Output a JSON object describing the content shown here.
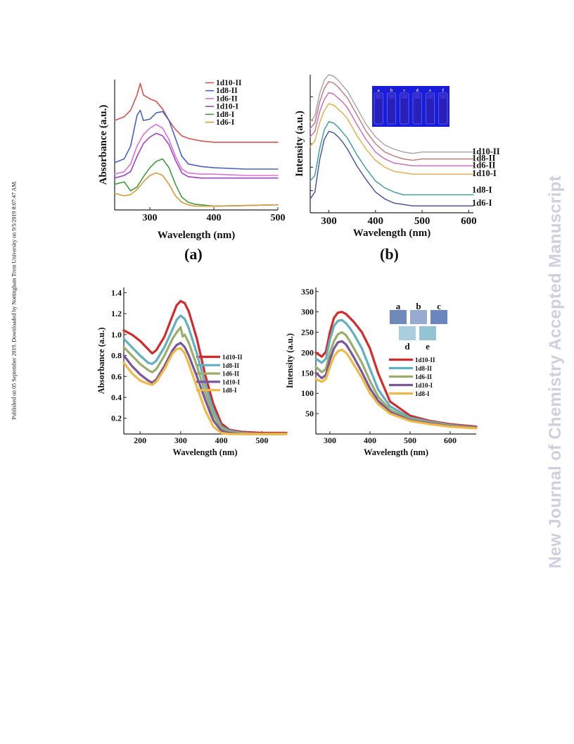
{
  "margin_note": "Published on 05 September 2019. Downloaded by Nottingham Trent University on 9/5/2019 8:07:47 AM.",
  "watermark": "New Journal of Chemistry Accepted Manuscript",
  "panel_labels": {
    "a": "(a)",
    "b": "(b)"
  },
  "inset_b_letters": [
    "a",
    "b",
    "c",
    "d",
    "e",
    "f"
  ],
  "inset_d_letters": [
    "a",
    "b",
    "c",
    "d",
    "e"
  ],
  "chart_data": [
    {
      "id": "a",
      "type": "line",
      "xlabel": "Wavelength (nm)",
      "ylabel": "Absorbance (a.u.)",
      "xlim": [
        245,
        500
      ],
      "x_ticks": [
        300,
        400,
        500
      ],
      "y_ticks_shown": false,
      "legend_position": "top-right",
      "series": [
        {
          "name": "1d10-II",
          "color": "#d9534f",
          "x": [
            245,
            260,
            270,
            280,
            285,
            290,
            300,
            310,
            320,
            330,
            340,
            350,
            360,
            380,
            400,
            450,
            500
          ],
          "y": [
            0.7,
            0.73,
            0.78,
            0.9,
            0.99,
            0.9,
            0.87,
            0.85,
            0.79,
            0.7,
            0.63,
            0.58,
            0.56,
            0.54,
            0.53,
            0.53,
            0.53
          ]
        },
        {
          "name": "1d8-II",
          "color": "#4a62c4",
          "x": [
            245,
            260,
            270,
            280,
            285,
            290,
            300,
            310,
            320,
            330,
            340,
            350,
            360,
            380,
            400,
            450,
            500
          ],
          "y": [
            0.37,
            0.4,
            0.5,
            0.74,
            0.78,
            0.7,
            0.71,
            0.76,
            0.77,
            0.7,
            0.56,
            0.42,
            0.36,
            0.34,
            0.33,
            0.32,
            0.32
          ]
        },
        {
          "name": "1d6-II",
          "color": "#e36fdc",
          "x": [
            245,
            260,
            270,
            280,
            290,
            300,
            310,
            320,
            330,
            340,
            350,
            360,
            380,
            400,
            450,
            500
          ],
          "y": [
            0.28,
            0.3,
            0.36,
            0.5,
            0.59,
            0.64,
            0.67,
            0.64,
            0.55,
            0.42,
            0.32,
            0.29,
            0.28,
            0.28,
            0.27,
            0.27
          ]
        },
        {
          "name": "1d10-I",
          "color": "#9d44c0",
          "x": [
            245,
            260,
            270,
            280,
            290,
            300,
            310,
            320,
            330,
            340,
            350,
            360,
            380,
            400,
            450,
            500
          ],
          "y": [
            0.25,
            0.27,
            0.3,
            0.42,
            0.52,
            0.57,
            0.6,
            0.58,
            0.51,
            0.39,
            0.29,
            0.26,
            0.25,
            0.25,
            0.25,
            0.25
          ]
        },
        {
          "name": "1d8-I",
          "color": "#3f9f3f",
          "x": [
            245,
            260,
            270,
            280,
            290,
            300,
            310,
            320,
            330,
            340,
            350,
            360,
            370,
            380,
            400,
            450,
            500
          ],
          "y": [
            0.2,
            0.22,
            0.15,
            0.18,
            0.26,
            0.33,
            0.38,
            0.4,
            0.33,
            0.2,
            0.1,
            0.06,
            0.045,
            0.04,
            0.03,
            0.035,
            0.04
          ]
        },
        {
          "name": "1d6-I",
          "color": "#d89a3c",
          "x": [
            245,
            260,
            270,
            280,
            290,
            300,
            310,
            320,
            330,
            340,
            350,
            360,
            370,
            380,
            400,
            450,
            500
          ],
          "y": [
            0.13,
            0.11,
            0.12,
            0.16,
            0.22,
            0.27,
            0.29,
            0.27,
            0.2,
            0.11,
            0.06,
            0.04,
            0.03,
            0.03,
            0.03,
            0.035,
            0.04
          ]
        }
      ]
    },
    {
      "id": "b",
      "type": "line",
      "xlabel": "Wavelength (nm)",
      "ylabel": "Intensity (a.u.)",
      "xlim": [
        260,
        610
      ],
      "x_ticks": [
        300,
        400,
        500,
        600
      ],
      "y_ticks_shown": false,
      "legend_position": "right, at line ends",
      "series": [
        {
          "name": "1d10-II",
          "color": "#a9a9a9",
          "x": [
            260,
            270,
            280,
            290,
            300,
            310,
            320,
            330,
            340,
            350,
            360,
            380,
            400,
            420,
            440,
            460,
            480,
            500,
            520,
            540,
            560,
            580,
            610
          ],
          "y": [
            0.66,
            0.7,
            0.86,
            0.96,
            1.0,
            0.99,
            0.96,
            0.92,
            0.88,
            0.82,
            0.76,
            0.64,
            0.55,
            0.49,
            0.46,
            0.44,
            0.43,
            0.44,
            0.44,
            0.44,
            0.44,
            0.44,
            0.44
          ]
        },
        {
          "name": "1d8-II",
          "color": "#c57e7e",
          "x": [
            260,
            270,
            280,
            290,
            300,
            310,
            320,
            330,
            340,
            350,
            360,
            380,
            400,
            420,
            440,
            460,
            480,
            500,
            520,
            540,
            560,
            580,
            610
          ],
          "y": [
            0.61,
            0.65,
            0.8,
            0.9,
            0.95,
            0.94,
            0.91,
            0.87,
            0.83,
            0.77,
            0.71,
            0.59,
            0.5,
            0.44,
            0.41,
            0.39,
            0.38,
            0.39,
            0.39,
            0.39,
            0.39,
            0.39,
            0.39
          ]
        },
        {
          "name": "1d6-II",
          "color": "#d06fbe",
          "x": [
            260,
            270,
            280,
            290,
            300,
            310,
            320,
            330,
            340,
            350,
            360,
            380,
            400,
            420,
            440,
            460,
            480,
            500,
            520,
            540,
            560,
            580,
            610
          ],
          "y": [
            0.55,
            0.59,
            0.73,
            0.82,
            0.87,
            0.86,
            0.83,
            0.8,
            0.76,
            0.7,
            0.64,
            0.53,
            0.44,
            0.39,
            0.36,
            0.35,
            0.34,
            0.34,
            0.34,
            0.34,
            0.34,
            0.34,
            0.34
          ]
        },
        {
          "name": "1d10-I",
          "color": "#e3b04e",
          "x": [
            260,
            270,
            280,
            290,
            300,
            310,
            320,
            330,
            340,
            350,
            360,
            380,
            400,
            420,
            440,
            460,
            480,
            500,
            520,
            540,
            560,
            580,
            610
          ],
          "y": [
            0.48,
            0.52,
            0.65,
            0.74,
            0.79,
            0.78,
            0.75,
            0.72,
            0.68,
            0.62,
            0.56,
            0.46,
            0.38,
            0.33,
            0.3,
            0.29,
            0.28,
            0.28,
            0.28,
            0.28,
            0.28,
            0.28,
            0.28
          ]
        },
        {
          "name": "1d8-I",
          "color": "#3fa39a",
          "x": [
            260,
            270,
            280,
            290,
            300,
            310,
            320,
            330,
            340,
            350,
            360,
            380,
            400,
            420,
            440,
            460,
            480,
            500,
            520,
            540,
            560,
            580,
            610
          ],
          "y": [
            0.23,
            0.27,
            0.46,
            0.6,
            0.66,
            0.65,
            0.62,
            0.58,
            0.54,
            0.48,
            0.42,
            0.32,
            0.23,
            0.18,
            0.15,
            0.13,
            0.13,
            0.13,
            0.13,
            0.13,
            0.13,
            0.13,
            0.13
          ]
        },
        {
          "name": "1d6-I",
          "color": "#4f56a8",
          "x": [
            260,
            270,
            280,
            290,
            300,
            310,
            320,
            330,
            340,
            350,
            360,
            380,
            400,
            420,
            440,
            460,
            480,
            500,
            520,
            540,
            560,
            580,
            610
          ],
          "y": [
            0.1,
            0.15,
            0.38,
            0.53,
            0.59,
            0.58,
            0.55,
            0.51,
            0.46,
            0.4,
            0.34,
            0.24,
            0.15,
            0.1,
            0.07,
            0.06,
            0.05,
            0.05,
            0.05,
            0.05,
            0.05,
            0.05,
            0.05
          ]
        }
      ]
    },
    {
      "id": "c",
      "type": "line",
      "xlabel": "Wavelength (nm)",
      "ylabel": "Absorbance (a.u.)",
      "xlim": [
        160,
        560
      ],
      "ylim": [
        0.05,
        1.45
      ],
      "x_ticks": [
        200,
        300,
        400,
        500
      ],
      "y_ticks": [
        0.2,
        0.4,
        0.6,
        0.8,
        1.0,
        1.2,
        1.4
      ],
      "legend_position": "right",
      "series": [
        {
          "name": "1d10-II",
          "color": "#d62a2a",
          "x": [
            160,
            180,
            200,
            220,
            230,
            240,
            260,
            280,
            290,
            300,
            310,
            320,
            340,
            360,
            380,
            400,
            420,
            450,
            500,
            560
          ],
          "y": [
            1.04,
            1.0,
            0.94,
            0.86,
            0.82,
            0.85,
            0.98,
            1.18,
            1.28,
            1.32,
            1.3,
            1.22,
            0.96,
            0.62,
            0.34,
            0.15,
            0.09,
            0.07,
            0.06,
            0.06
          ]
        },
        {
          "name": "1d8-II",
          "color": "#5fb0c0",
          "x": [
            160,
            180,
            200,
            220,
            230,
            240,
            260,
            280,
            290,
            300,
            310,
            320,
            340,
            360,
            380,
            400,
            420,
            450,
            500,
            560
          ],
          "y": [
            0.96,
            0.88,
            0.8,
            0.73,
            0.72,
            0.75,
            0.88,
            1.05,
            1.14,
            1.18,
            1.15,
            1.06,
            0.82,
            0.53,
            0.28,
            0.12,
            0.08,
            0.06,
            0.05,
            0.05
          ]
        },
        {
          "name": "1d6-II",
          "color": "#9bae6a",
          "x": [
            160,
            180,
            200,
            220,
            230,
            240,
            260,
            280,
            290,
            300,
            305,
            310,
            320,
            340,
            360,
            380,
            400,
            420,
            450,
            500,
            560
          ],
          "y": [
            0.88,
            0.8,
            0.72,
            0.66,
            0.64,
            0.67,
            0.8,
            0.96,
            1.02,
            1.07,
            0.98,
            1.0,
            0.92,
            0.7,
            0.45,
            0.23,
            0.1,
            0.07,
            0.05,
            0.05,
            0.05
          ]
        },
        {
          "name": "1d10-I",
          "color": "#7a559a",
          "x": [
            160,
            180,
            200,
            220,
            230,
            240,
            260,
            280,
            290,
            300,
            310,
            320,
            340,
            360,
            380,
            400,
            420,
            450,
            500,
            560
          ],
          "y": [
            0.8,
            0.7,
            0.62,
            0.56,
            0.54,
            0.57,
            0.7,
            0.85,
            0.9,
            0.92,
            0.88,
            0.8,
            0.6,
            0.38,
            0.18,
            0.08,
            0.06,
            0.05,
            0.05,
            0.05
          ]
        },
        {
          "name": "1d8-I",
          "color": "#f0b944",
          "x": [
            160,
            180,
            200,
            220,
            230,
            240,
            260,
            280,
            290,
            300,
            310,
            320,
            340,
            360,
            380,
            400,
            420,
            450,
            500,
            560
          ],
          "y": [
            0.73,
            0.63,
            0.56,
            0.53,
            0.52,
            0.55,
            0.67,
            0.82,
            0.86,
            0.87,
            0.82,
            0.72,
            0.5,
            0.28,
            0.12,
            0.06,
            0.05,
            0.05,
            0.05,
            0.05
          ]
        }
      ]
    },
    {
      "id": "d",
      "type": "line",
      "xlabel": "Wavelength (nm)",
      "ylabel": "Intensity (a.u.)",
      "xlim": [
        265,
        665
      ],
      "ylim": [
        0,
        360
      ],
      "x_ticks": [
        300,
        400,
        500,
        600
      ],
      "y_ticks": [
        50,
        100,
        150,
        200,
        250,
        300,
        350
      ],
      "legend_position": "right",
      "series": [
        {
          "name": "1d10-II",
          "color": "#d62a2a",
          "x": [
            265,
            280,
            290,
            300,
            310,
            320,
            330,
            340,
            350,
            360,
            380,
            400,
            420,
            450,
            500,
            550,
            600,
            665
          ],
          "y": [
            200,
            190,
            202,
            250,
            285,
            298,
            300,
            295,
            285,
            275,
            250,
            210,
            150,
            80,
            45,
            32,
            24,
            18
          ]
        },
        {
          "name": "1d8-II",
          "color": "#5fb0c0",
          "x": [
            265,
            280,
            290,
            300,
            310,
            320,
            330,
            340,
            350,
            360,
            380,
            400,
            420,
            450,
            500,
            550,
            600,
            665
          ],
          "y": [
            185,
            175,
            185,
            232,
            265,
            278,
            280,
            272,
            260,
            245,
            210,
            160,
            110,
            68,
            40,
            30,
            22,
            16
          ]
        },
        {
          "name": "1d6-II",
          "color": "#9bae6a",
          "x": [
            265,
            280,
            290,
            300,
            310,
            320,
            330,
            340,
            350,
            360,
            380,
            400,
            420,
            450,
            500,
            550,
            600,
            665
          ],
          "y": [
            165,
            152,
            160,
            200,
            228,
            245,
            250,
            243,
            228,
            210,
            175,
            130,
            92,
            60,
            36,
            28,
            20,
            15
          ]
        },
        {
          "name": "1d10-I",
          "color": "#7a559a",
          "x": [
            265,
            280,
            290,
            300,
            310,
            320,
            330,
            340,
            350,
            360,
            380,
            400,
            420,
            450,
            500,
            550,
            600,
            665
          ],
          "y": [
            150,
            137,
            145,
            182,
            210,
            225,
            228,
            220,
            205,
            188,
            152,
            112,
            82,
            54,
            34,
            26,
            19,
            15
          ]
        },
        {
          "name": "1d8-I",
          "color": "#f0b944",
          "x": [
            265,
            280,
            290,
            300,
            310,
            320,
            330,
            340,
            350,
            360,
            380,
            400,
            420,
            450,
            500,
            550,
            600,
            665
          ],
          "y": [
            135,
            128,
            135,
            165,
            190,
            203,
            207,
            200,
            186,
            170,
            138,
            100,
            74,
            50,
            32,
            24,
            18,
            14
          ]
        }
      ]
    }
  ]
}
